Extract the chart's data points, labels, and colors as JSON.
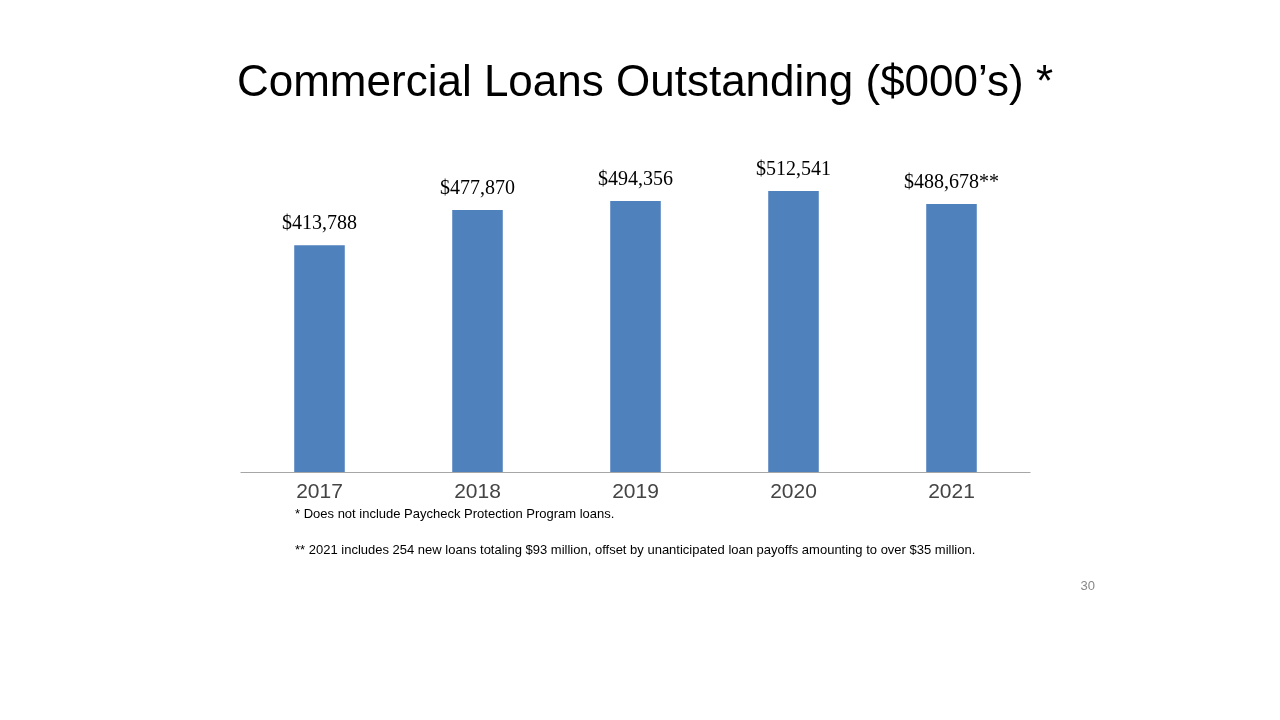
{
  "chart_data": {
    "type": "bar",
    "title": "Commercial Loans Outstanding ($000’s) *",
    "categories": [
      "2017",
      "2018",
      "2019",
      "2020",
      "2021"
    ],
    "values": [
      413788,
      477870,
      494356,
      512541,
      488678
    ],
    "value_labels": [
      "$413,788",
      "$477,870",
      "$494,356",
      "$512,541",
      "$488,678**"
    ],
    "color": "#4f81bd",
    "grid": false,
    "annotations": [
      "* Does not include Paycheck Protection Program loans.",
      "** 2021 includes 254 new loans totaling $93 million, offset by unanticipated loan payoffs amounting to over $35 million.",
      "30"
    ]
  }
}
